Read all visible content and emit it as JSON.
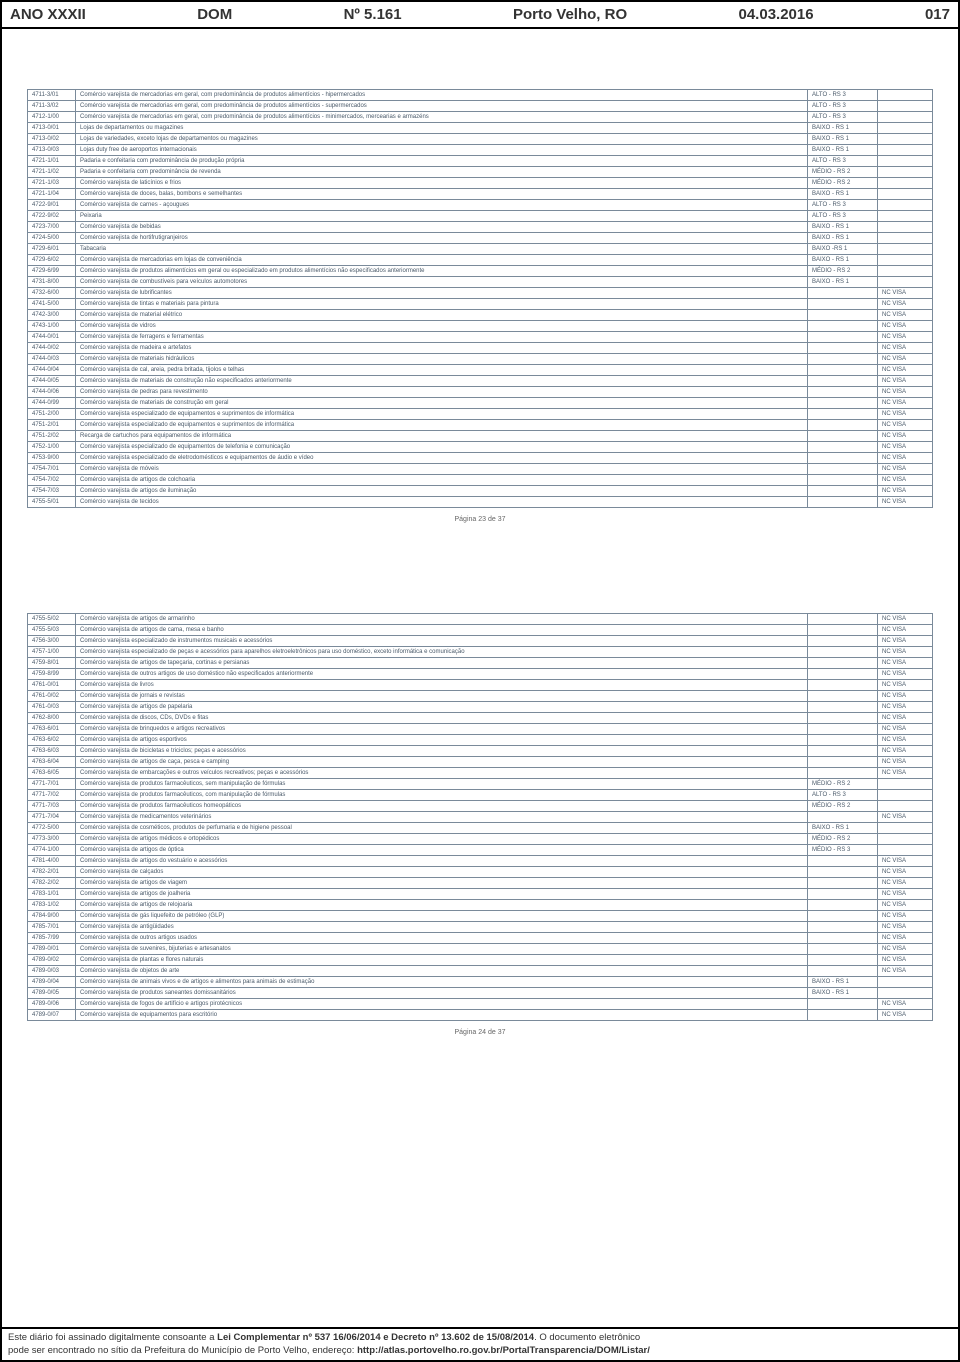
{
  "header": {
    "ano": "ANO XXXII",
    "dom": "DOM",
    "numero": "Nº 5.161",
    "local": "Porto Velho, RO",
    "data": "04.03.2016",
    "pagina": "017"
  },
  "page_num_1": "Página 23 de 37",
  "page_num_2": "Página 24 de 37",
  "footer": {
    "line1a": "Este diário foi assinado digitalmente consoante a ",
    "line1b": "Lei Complementar nº 537 16/06/2014 e Decreto nº 13.602 de 15/08/2014",
    "line1c": ". O documento eletrônico",
    "line2a": "pode ser encontrado no sítio da Prefeitura do Município de Porto Velho, endereço: ",
    "line2b": "http://atlas.portovelho.ro.gov.br/PortalTransparencia/DOM/Listar/"
  },
  "table1": [
    {
      "c": "4711-3/01",
      "d": "Comércio varejista de mercadorias em geral, com predominância de produtos alimentícios - hipermercados",
      "r": "ALTO - RS 3",
      "v": ""
    },
    {
      "c": "4711-3/02",
      "d": "Comércio varejista de mercadorias em geral, com predominância de produtos alimentícios - supermercados",
      "r": "ALTO - RS 3",
      "v": ""
    },
    {
      "c": "4712-1/00",
      "d": "Comércio varejista de mercadorias em geral, com predominância de produtos alimentícios - minimercados, mercearias e armazéns",
      "r": "ALTO - RS 3",
      "v": ""
    },
    {
      "c": "4713-0/01",
      "d": "Lojas de departamentos ou magazines",
      "r": "BAIXO - RS 1",
      "v": ""
    },
    {
      "c": "4713-0/02",
      "d": "Lojas de variedades, exceto lojas de departamentos ou magazines",
      "r": "BAIXO - RS 1",
      "v": ""
    },
    {
      "c": "4713-0/03",
      "d": "Lojas duty free de aeroportos internacionais",
      "r": "BAIXO - RS 1",
      "v": ""
    },
    {
      "c": "4721-1/01",
      "d": "Padaria e confeitaria com predominância de produção própria",
      "r": "ALTO - RS 3",
      "v": ""
    },
    {
      "c": "4721-1/02",
      "d": "Padaria e confeitaria com predominância de revenda",
      "r": "MÉDIO - RS 2",
      "v": ""
    },
    {
      "c": "4721-1/03",
      "d": "Comércio varejista de laticínios e frios",
      "r": "MÉDIO - RS 2",
      "v": ""
    },
    {
      "c": "4721-1/04",
      "d": "Comércio varejista de doces, balas, bombons e semelhantes",
      "r": "BAIXO - RS 1",
      "v": ""
    },
    {
      "c": "4722-9/01",
      "d": "Comércio varejista de carnes - açougues",
      "r": "ALTO - RS 3",
      "v": ""
    },
    {
      "c": "4722-9/02",
      "d": "Peixaria",
      "r": "ALTO - RS 3",
      "v": ""
    },
    {
      "c": "4723-7/00",
      "d": "Comércio varejista de bebidas",
      "r": "BAIXO - RS 1",
      "v": ""
    },
    {
      "c": "4724-5/00",
      "d": "Comércio varejista de hortifrutigranjeiros",
      "r": "BAIXO - RS 1",
      "v": ""
    },
    {
      "c": "4729-6/01",
      "d": "Tabacaria",
      "r": "BAIXO -RS 1",
      "v": ""
    },
    {
      "c": "4729-6/02",
      "d": "Comércio varejista de mercadorias em lojas de conveniência",
      "r": "BAIXO - RS 1",
      "v": ""
    },
    {
      "c": "4729-6/99",
      "d": "Comércio varejista de produtos alimentícios em geral ou especializado em produtos alimentícios não especificados anteriormente",
      "r": "MÉDIO - RS 2",
      "v": ""
    },
    {
      "c": "4731-8/00",
      "d": "Comércio varejista de combustíveis para veículos automotores",
      "r": "BAIXO - RS 1",
      "v": ""
    },
    {
      "c": "4732-6/00",
      "d": "Comércio varejista de lubrificantes",
      "r": "",
      "v": "NC VISA"
    },
    {
      "c": "4741-5/00",
      "d": "Comércio varejista de tintas e materiais para pintura",
      "r": "",
      "v": "NC VISA"
    },
    {
      "c": "4742-3/00",
      "d": "Comércio varejista de material elétrico",
      "r": "",
      "v": "NC VISA"
    },
    {
      "c": "4743-1/00",
      "d": "Comércio varejista de vidros",
      "r": "",
      "v": "NC VISA"
    },
    {
      "c": "4744-0/01",
      "d": "Comércio varejista de ferragens e ferramentas",
      "r": "",
      "v": "NC VISA"
    },
    {
      "c": "4744-0/02",
      "d": "Comércio varejista de madeira e artefatos",
      "r": "",
      "v": "NC VISA"
    },
    {
      "c": "4744-0/03",
      "d": "Comércio varejista de materiais hidráulicos",
      "r": "",
      "v": "NC VISA"
    },
    {
      "c": "4744-0/04",
      "d": "Comércio varejista de cal, areia, pedra britada, tijolos e telhas",
      "r": "",
      "v": "NC VISA"
    },
    {
      "c": "4744-0/05",
      "d": "Comércio varejista de materiais de construção não especificados anteriormente",
      "r": "",
      "v": "NC VISA"
    },
    {
      "c": "4744-0/06",
      "d": "Comércio varejista de pedras para revestimento",
      "r": "",
      "v": "NC VISA"
    },
    {
      "c": "4744-0/99",
      "d": "Comércio varejista de materiais de construção em geral",
      "r": "",
      "v": "NC VISA"
    },
    {
      "c": "4751-2/00",
      "d": "Comércio varejista especializado de equipamentos e suprimentos de informática",
      "r": "",
      "v": "NC VISA"
    },
    {
      "c": "4751-2/01",
      "d": "Comércio varejista especializado de equipamentos e suprimentos de informática",
      "r": "",
      "v": "NC VISA"
    },
    {
      "c": "4751-2/02",
      "d": "Recarga de cartuchos para equipamentos de informática",
      "r": "",
      "v": "NC VISA"
    },
    {
      "c": "4752-1/00",
      "d": "Comércio varejista especializado de equipamentos de telefonia e comunicação",
      "r": "",
      "v": "NC VISA"
    },
    {
      "c": "4753-9/00",
      "d": "Comércio varejista especializado de eletrodomésticos e equipamentos de áudio e vídeo",
      "r": "",
      "v": "NC VISA"
    },
    {
      "c": "4754-7/01",
      "d": "Comércio varejista de móveis",
      "r": "",
      "v": "NC VISA"
    },
    {
      "c": "4754-7/02",
      "d": "Comércio varejista de artigos de colchoaria",
      "r": "",
      "v": "NC VISA"
    },
    {
      "c": "4754-7/03",
      "d": "Comércio varejista de artigos de iluminação",
      "r": "",
      "v": "NC VISA"
    },
    {
      "c": "4755-5/01",
      "d": "Comércio varejista de tecidos",
      "r": "",
      "v": "NC VISA"
    }
  ],
  "table2": [
    {
      "c": "4755-5/02",
      "d": "Comércio varejista de artigos de armarinho",
      "r": "",
      "v": "NC VISA"
    },
    {
      "c": "4755-5/03",
      "d": "Comércio varejista de artigos de cama, mesa e banho",
      "r": "",
      "v": "NC VISA"
    },
    {
      "c": "4756-3/00",
      "d": "Comércio varejista especializado de instrumentos musicais e acessórios",
      "r": "",
      "v": "NC VISA"
    },
    {
      "c": "4757-1/00",
      "d": "Comércio varejista especializado de peças e acessórios para aparelhos eletroeletrônicos para uso doméstico, exceto informática e comunicação",
      "r": "",
      "v": "NC VISA"
    },
    {
      "c": "4759-8/01",
      "d": "Comércio varejista de artigos de tapeçaria, cortinas e persianas",
      "r": "",
      "v": "NC VISA"
    },
    {
      "c": "4759-8/99",
      "d": "Comércio varejista de outros artigos de uso doméstico não especificados anteriormente",
      "r": "",
      "v": "NC VISA"
    },
    {
      "c": "4761-0/01",
      "d": "Comércio varejista de livros",
      "r": "",
      "v": "NC VISA"
    },
    {
      "c": "4761-0/02",
      "d": "Comércio varejista de jornais e revistas",
      "r": "",
      "v": "NC VISA"
    },
    {
      "c": "4761-0/03",
      "d": "Comércio varejista de artigos de papelaria",
      "r": "",
      "v": "NC VISA"
    },
    {
      "c": "4762-8/00",
      "d": "Comércio varejista de discos, CDs, DVDs e fitas",
      "r": "",
      "v": "NC VISA"
    },
    {
      "c": "4763-6/01",
      "d": "Comércio varejista de brinquedos e artigos recreativos",
      "r": "",
      "v": "NC VISA"
    },
    {
      "c": "4763-6/02",
      "d": "Comércio varejista de artigos esportivos",
      "r": "",
      "v": "NC VISA"
    },
    {
      "c": "4763-6/03",
      "d": "Comércio varejista de bicicletas e triciclos; peças e acessórios",
      "r": "",
      "v": "NC VISA"
    },
    {
      "c": "4763-6/04",
      "d": "Comércio varejista de artigos de caça, pesca e camping",
      "r": "",
      "v": "NC VISA"
    },
    {
      "c": "4763-6/05",
      "d": "Comércio varejista de embarcações e outros veículos recreativos; peças e acessórios",
      "r": "",
      "v": "NC VISA"
    },
    {
      "c": "4771-7/01",
      "d": "Comércio varejista de produtos farmacêuticos, sem manipulação de fórmulas",
      "r": "MÉDIO - RS 2",
      "v": ""
    },
    {
      "c": "4771-7/02",
      "d": "Comércio varejista de produtos farmacêuticos, com manipulação de fórmulas",
      "r": "ALTO - RS 3",
      "v": ""
    },
    {
      "c": "4771-7/03",
      "d": "Comércio varejista de produtos farmacêuticos homeopáticos",
      "r": "MÉDIO - RS 2",
      "v": ""
    },
    {
      "c": "4771-7/04",
      "d": "Comércio varejista de medicamentos veterinários",
      "r": "",
      "v": "NC VISA"
    },
    {
      "c": "4772-5/00",
      "d": "Comércio varejista de cosméticos, produtos de perfumaria e de higiene pessoal",
      "r": "BAIXO - RS 1",
      "v": ""
    },
    {
      "c": "4773-3/00",
      "d": "Comércio varejista de artigos médicos e ortopédicos",
      "r": "MÉDIO - RS 2",
      "v": ""
    },
    {
      "c": "4774-1/00",
      "d": "Comércio varejista de artigos de óptica",
      "r": "MÉDIO - RS 3",
      "v": ""
    },
    {
      "c": "4781-4/00",
      "d": "Comércio varejista de artigos do vestuário e acessórios",
      "r": "",
      "v": "NC VISA"
    },
    {
      "c": "4782-2/01",
      "d": "Comércio varejista de calçados",
      "r": "",
      "v": "NC VISA"
    },
    {
      "c": "4782-2/02",
      "d": "Comércio varejista de artigos de viagem",
      "r": "",
      "v": "NC VISA"
    },
    {
      "c": "4783-1/01",
      "d": "Comércio varejista de artigos de joalheria",
      "r": "",
      "v": "NC VISA"
    },
    {
      "c": "4783-1/02",
      "d": "Comércio varejista de artigos de relojoaria",
      "r": "",
      "v": "NC VISA"
    },
    {
      "c": "4784-9/00",
      "d": "Comércio varejista de gás liquefeito de petróleo (GLP)",
      "r": "",
      "v": "NC VISA"
    },
    {
      "c": "4785-7/01",
      "d": "Comércio varejista de antigüidades",
      "r": "",
      "v": "NC VISA"
    },
    {
      "c": "4785-7/99",
      "d": "Comércio varejista de outros artigos usados",
      "r": "",
      "v": "NC VISA"
    },
    {
      "c": "4789-0/01",
      "d": "Comércio varejista de suvenires, bijuterias e artesanatos",
      "r": "",
      "v": "NC VISA"
    },
    {
      "c": "4789-0/02",
      "d": "Comércio varejista de plantas e flores naturais",
      "r": "",
      "v": "NC VISA"
    },
    {
      "c": "4789-0/03",
      "d": "Comércio varejista de objetos de arte",
      "r": "",
      "v": "NC VISA"
    },
    {
      "c": "4789-0/04",
      "d": "Comércio varejista de animais vivos e de artigos e alimentos para animais de estimação",
      "r": "BAIXO - RS 1",
      "v": ""
    },
    {
      "c": "4789-0/05",
      "d": "Comércio varejista de produtos saneantes domissanitários",
      "r": "BAIXO - RS 1",
      "v": ""
    },
    {
      "c": "4789-0/06",
      "d": "Comércio varejista de fogos de artifício e artigos pirotécnicos",
      "r": "",
      "v": "NC VISA"
    },
    {
      "c": "4789-0/07",
      "d": "Comércio varejista de equipamentos para escritório",
      "r": "",
      "v": "NC VISA"
    }
  ]
}
